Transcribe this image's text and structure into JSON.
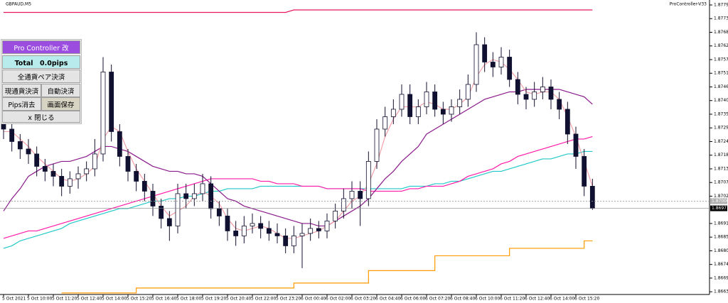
{
  "chart_data": {
    "type": "candlestick",
    "title": "GBPAUD,M5",
    "indicator": "ProController-V33",
    "categories": [
      "5 Oct 2021",
      null,
      null,
      "5 Oct 10:00",
      null,
      null,
      "5 Oct 11:20",
      null,
      null,
      "5 Oct 12:40",
      null,
      null,
      "5 Oct 14:00",
      null,
      null,
      "5 Oct 15:20",
      null,
      null,
      "5 Oct 16:40",
      null,
      null,
      "5 Oct 18:00",
      null,
      null,
      "5 Oct 19:20",
      null,
      null,
      "5 Oct 20:40",
      null,
      null,
      "5 Oct 22:00",
      null,
      null,
      "5 Oct 23:20",
      null,
      null,
      "6 Oct 00:40",
      null,
      null,
      "6 Oct 02:00",
      null,
      null,
      "6 Oct 03:20",
      null,
      null,
      "6 Oct 04:40",
      null,
      null,
      "6 Oct 06:00",
      null,
      null,
      "6 Oct 07:20",
      null,
      null,
      "6 Oct 08:40",
      null,
      null,
      "6 Oct 10:00",
      null,
      null,
      "6 Oct 11:20",
      null,
      null,
      "6 Oct 12:40",
      null,
      null,
      "6 Oct 14:00",
      null,
      null,
      "6 Oct 15:20",
      null,
      null
    ],
    "open": [
      1.8731,
      1.8729,
      1.8724,
      1.8721,
      1.8719,
      1.8714,
      1.8712,
      1.871,
      1.8706,
      1.8709,
      1.8711,
      1.8713,
      1.8719,
      1.8752,
      1.8728,
      1.8718,
      1.8712,
      1.8708,
      1.8704,
      1.8698,
      1.8693,
      1.869,
      1.8703,
      1.8701,
      1.8703,
      1.8707,
      1.8697,
      1.8694,
      1.8688,
      1.8686,
      1.869,
      1.8691,
      1.8689,
      1.8687,
      1.8686,
      1.8682,
      1.8686,
      1.8687,
      1.8689,
      1.8688,
      1.8692,
      1.8696,
      1.8701,
      1.8704,
      1.8701,
      1.8716,
      1.8729,
      1.8734,
      1.8737,
      1.8743,
      1.8734,
      1.8738,
      1.8744,
      1.8737,
      1.8735,
      1.8738,
      1.8741,
      1.8747,
      1.8763,
      1.8756,
      1.8754,
      1.8758,
      1.8749,
      1.8743,
      1.8741,
      1.8744,
      1.8746,
      1.8741,
      1.8737,
      1.8727,
      1.8718,
      1.8706
    ],
    "high": [
      1.8735,
      1.8733,
      1.8727,
      1.8725,
      1.8722,
      1.8717,
      1.8715,
      1.8713,
      1.8712,
      1.8714,
      1.8716,
      1.8725,
      1.8758,
      1.8755,
      1.8731,
      1.8721,
      1.8715,
      1.8711,
      1.8707,
      1.8701,
      1.8696,
      1.8707,
      1.8707,
      1.8707,
      1.8711,
      1.871,
      1.87,
      1.8697,
      1.8692,
      1.8694,
      1.8695,
      1.8694,
      1.8692,
      1.8691,
      1.8689,
      1.869,
      1.8691,
      1.8693,
      1.8692,
      1.8695,
      1.8699,
      1.8705,
      1.8708,
      1.8708,
      1.872,
      1.8733,
      1.8738,
      1.8741,
      1.8747,
      1.8747,
      1.8741,
      1.8748,
      1.8747,
      1.874,
      1.8741,
      1.8745,
      1.8751,
      1.8768,
      1.8766,
      1.876,
      1.8762,
      1.8761,
      1.8752,
      1.8746,
      1.8748,
      1.875,
      1.8749,
      1.8744,
      1.874,
      1.873,
      1.8721,
      1.8709
    ],
    "low": [
      1.8725,
      1.872,
      1.8717,
      1.8715,
      1.871,
      1.8708,
      1.8706,
      1.8702,
      1.8703,
      1.8705,
      1.8708,
      1.871,
      1.8716,
      1.8724,
      1.8714,
      1.8708,
      1.8704,
      1.87,
      1.8694,
      1.8689,
      1.8684,
      1.8687,
      1.8697,
      1.8698,
      1.87,
      1.8693,
      1.869,
      1.8684,
      1.8682,
      1.8683,
      1.8687,
      1.8685,
      1.8684,
      1.8683,
      1.8679,
      1.8679,
      1.8673,
      1.8684,
      1.8685,
      1.8685,
      1.8689,
      1.8693,
      1.8697,
      1.869,
      1.8698,
      1.8713,
      1.8726,
      1.8731,
      1.8734,
      1.8731,
      1.8731,
      1.8735,
      1.8734,
      1.8731,
      1.8732,
      1.8735,
      1.8738,
      1.8744,
      1.8752,
      1.875,
      1.8751,
      1.8746,
      1.8739,
      1.8737,
      1.8738,
      1.8741,
      1.8737,
      1.8733,
      1.8723,
      1.8713,
      1.8702,
      1.86965
    ],
    "close": [
      1.8729,
      1.8724,
      1.8721,
      1.8719,
      1.8714,
      1.8712,
      1.871,
      1.8706,
      1.8709,
      1.8711,
      1.8713,
      1.8719,
      1.8752,
      1.8728,
      1.8718,
      1.8712,
      1.8708,
      1.8704,
      1.8698,
      1.8693,
      1.869,
      1.8703,
      1.8701,
      1.8703,
      1.8707,
      1.8697,
      1.8694,
      1.8688,
      1.8686,
      1.869,
      1.8691,
      1.8689,
      1.8687,
      1.8686,
      1.8682,
      1.8686,
      1.8687,
      1.8689,
      1.8688,
      1.8692,
      1.8696,
      1.8701,
      1.8704,
      1.8701,
      1.8716,
      1.8729,
      1.8734,
      1.8737,
      1.8743,
      1.8734,
      1.8738,
      1.8744,
      1.8737,
      1.8735,
      1.8738,
      1.8741,
      1.8747,
      1.8763,
      1.8756,
      1.8754,
      1.8758,
      1.8749,
      1.8743,
      1.8741,
      1.8744,
      1.8746,
      1.8741,
      1.8737,
      1.8727,
      1.8718,
      1.8706,
      1.86971
    ],
    "candle_color": "#101030",
    "series": [
      {
        "color": "#e8175d",
        "values": [
          1.8776,
          1.8776,
          1.8776,
          1.8776,
          1.8776,
          1.8776,
          1.8776,
          1.8776,
          1.8776,
          1.8776,
          1.8776,
          1.8776,
          1.8776,
          1.8776,
          1.8776,
          1.8776,
          1.8776,
          1.8776,
          1.8776,
          1.8776,
          1.8776,
          1.8776,
          1.8776,
          1.8776,
          1.8776,
          1.8776,
          1.8776,
          1.8776,
          1.8776,
          1.8776,
          1.8776,
          1.8776,
          1.8776,
          1.8776,
          1.8776,
          1.8777,
          1.8777,
          1.8777,
          1.8777,
          1.8777,
          1.8777,
          1.8777,
          1.8777,
          1.8777,
          1.8777,
          1.8777,
          1.8777,
          1.8777,
          1.8777,
          1.8777,
          1.8777,
          1.8777,
          1.8777,
          1.8777,
          1.8777,
          1.8777,
          1.8777,
          1.8777,
          1.8777,
          1.8777,
          1.8777,
          1.8777,
          1.8777,
          1.8777,
          1.8777,
          1.8777,
          1.8777,
          1.8777,
          1.8777,
          1.8777,
          1.8777,
          1.8777
        ]
      },
      {
        "color": "#ff9900",
        "step": true,
        "values": [
          null,
          null,
          null,
          null,
          null,
          null,
          null,
          1.8663,
          1.8663,
          1.8663,
          1.8663,
          1.8663,
          1.8663,
          1.8663,
          1.8663,
          1.8663,
          1.8665,
          1.8665,
          1.8665,
          1.8665,
          1.8665,
          1.8665,
          1.8665,
          1.8665,
          1.8665,
          1.8665,
          1.8665,
          1.8665,
          1.8665,
          1.8665,
          1.8665,
          1.8665,
          1.8665,
          1.8665,
          1.8665,
          1.8667,
          1.8667,
          1.8667,
          1.8667,
          1.8667,
          1.8667,
          1.8667,
          1.8667,
          1.8667,
          1.8672,
          1.8672,
          1.8672,
          1.8672,
          1.8672,
          1.8672,
          1.8672,
          1.8672,
          1.8678,
          1.8678,
          1.8678,
          1.8678,
          1.8678,
          1.8678,
          1.8678,
          1.8678,
          1.8678,
          1.8681,
          1.8681,
          1.8681,
          1.8681,
          1.8681,
          1.8681,
          1.8681,
          1.8681,
          1.8681,
          1.8684,
          1.8684
        ]
      },
      {
        "color": "#20c8c8",
        "values": [
          1.8681,
          1.8682,
          1.8684,
          1.8685,
          1.8686,
          1.8687,
          1.8688,
          1.8689,
          1.8691,
          1.8692,
          1.8693,
          1.8694,
          1.8695,
          1.8696,
          1.8697,
          1.8697,
          1.8698,
          1.8699,
          1.87,
          1.87,
          1.8701,
          1.8701,
          1.8702,
          1.8702,
          1.8703,
          1.8704,
          1.8704,
          1.8705,
          1.8705,
          1.8705,
          1.8705,
          1.8706,
          1.8706,
          1.8706,
          1.8706,
          1.8706,
          1.8706,
          1.8706,
          1.8706,
          1.8705,
          1.8705,
          1.8705,
          1.8705,
          1.8705,
          1.8705,
          1.8705,
          1.8705,
          1.8705,
          1.8705,
          1.8706,
          1.8706,
          1.8706,
          1.8707,
          1.8707,
          1.8708,
          1.8708,
          1.8709,
          1.871,
          1.8711,
          1.8712,
          1.8712,
          1.8713,
          1.8714,
          1.8715,
          1.8716,
          1.8717,
          1.8717,
          1.8718,
          1.8719,
          1.8719,
          1.872,
          1.872
        ]
      },
      {
        "color": "#ff1aa8",
        "values": [
          1.8685,
          1.8686,
          1.8687,
          1.8688,
          1.8688,
          1.8689,
          1.869,
          1.8691,
          1.8692,
          1.8693,
          1.8694,
          1.8695,
          1.8696,
          1.8697,
          1.8698,
          1.8699,
          1.87,
          1.8701,
          1.8702,
          1.8703,
          1.8704,
          1.8705,
          1.8706,
          1.8707,
          1.8708,
          1.8709,
          1.8709,
          1.8709,
          1.8709,
          1.8709,
          1.8709,
          1.8708,
          1.8708,
          1.8707,
          1.8707,
          1.8707,
          1.8706,
          1.8706,
          1.8706,
          1.8705,
          1.8705,
          1.8705,
          1.8705,
          1.8705,
          1.8704,
          1.8704,
          1.8704,
          1.8704,
          1.8704,
          1.8705,
          1.8705,
          1.8706,
          1.8706,
          1.8706,
          1.8707,
          1.8708,
          1.871,
          1.8711,
          1.8712,
          1.8713,
          1.8715,
          1.8716,
          1.8718,
          1.8719,
          1.872,
          1.8721,
          1.8722,
          1.8723,
          1.8724,
          1.8725,
          1.8725,
          1.8726
        ]
      },
      {
        "color": "#8b1a8b",
        "values": [
          1.8696,
          1.8701,
          1.8705,
          1.871,
          1.8712,
          1.8714,
          1.8715,
          1.8716,
          1.8716,
          1.8717,
          1.8718,
          1.872,
          1.8722,
          1.8722,
          1.8721,
          1.872,
          1.8718,
          1.8716,
          1.8714,
          1.8713,
          1.8712,
          1.8712,
          1.8711,
          1.8711,
          1.871,
          1.8707,
          1.8704,
          1.8701,
          1.87,
          1.8698,
          1.8697,
          1.8696,
          1.8695,
          1.8694,
          1.8693,
          1.8692,
          1.8691,
          1.8691,
          1.869,
          1.869,
          1.8692,
          1.8694,
          1.8696,
          1.8698,
          1.8701,
          1.8705,
          1.8709,
          1.8712,
          1.8716,
          1.8719,
          1.8722,
          1.8727,
          1.8729,
          1.8731,
          1.8733,
          1.8735,
          1.8737,
          1.8739,
          1.8741,
          1.8742,
          1.8743,
          1.8744,
          1.8744,
          1.8745,
          1.8745,
          1.8745,
          1.8745,
          1.8745,
          1.8744,
          1.8743,
          1.8742,
          1.8739
        ]
      },
      {
        "color": "#f4a0a8",
        "values": [
          1.8728,
          1.8728,
          1.8725,
          1.8722,
          1.8718,
          1.8715,
          1.8712,
          1.8709,
          1.8708,
          1.8709,
          1.8711,
          1.8714,
          1.8725,
          1.873,
          1.8728,
          1.872,
          1.8713,
          1.8708,
          1.8703,
          1.8698,
          1.8694,
          1.8696,
          1.8698,
          1.8702,
          1.8704,
          1.8702,
          1.8699,
          1.8693,
          1.8689,
          1.8688,
          1.8689,
          1.869,
          1.8689,
          1.8687,
          1.8685,
          1.8685,
          1.8686,
          1.8687,
          1.8688,
          1.869,
          1.8692,
          1.8696,
          1.87,
          1.8702,
          1.8707,
          1.8715,
          1.8726,
          1.8733,
          1.8738,
          1.8738,
          1.8738,
          1.874,
          1.8739,
          1.8737,
          1.8737,
          1.8739,
          1.8742,
          1.875,
          1.8755,
          1.8757,
          1.8756,
          1.8753,
          1.8749,
          1.8744,
          1.8743,
          1.8744,
          1.8744,
          1.8741,
          1.8734,
          1.8726,
          1.8716,
          1.8706
        ]
      }
    ],
    "price_lines": [
      {
        "value": 1.87,
        "label": "1.87000",
        "style": "dotted"
      },
      {
        "value": 1.86971,
        "label": "1.86971",
        "style": "solid"
      }
    ],
    "ylim": [
      1.86624,
      1.8781
    ],
    "yticks": [
      {
        "value": 1.8779,
        "label": "1.87790"
      },
      {
        "value": 1.87735,
        "label": "1.87735"
      },
      {
        "value": 1.8768,
        "label": "1.87680"
      },
      {
        "value": 1.87625,
        "label": "1.87625"
      },
      {
        "value": 1.8757,
        "label": "1.87570"
      },
      {
        "value": 1.87515,
        "label": "1.87515"
      },
      {
        "value": 1.8746,
        "label": "1.87460"
      },
      {
        "value": 1.87405,
        "label": "1.87405"
      },
      {
        "value": 1.8735,
        "label": "1.87350"
      },
      {
        "value": 1.87295,
        "label": "1.87295"
      },
      {
        "value": 1.8724,
        "label": "1.87240"
      },
      {
        "value": 1.87185,
        "label": "1.87185"
      },
      {
        "value": 1.8713,
        "label": "1.87130"
      },
      {
        "value": 1.87075,
        "label": "1.87075"
      },
      {
        "value": 1.8702,
        "label": "1.87020"
      },
      {
        "value": 1.8691,
        "label": "1.86910"
      },
      {
        "value": 1.86855,
        "label": "1.86855"
      },
      {
        "value": 1.868,
        "label": "1.86800"
      },
      {
        "value": 1.86745,
        "label": "1.86745"
      },
      {
        "value": 1.8669,
        "label": "1.86690"
      },
      {
        "value": 1.86635,
        "label": "1.86635"
      }
    ],
    "grid": false
  },
  "panel": {
    "title": "Pro Controller 改",
    "total": "Total　0.0pips",
    "buttons": [
      "全通貨ペア決済",
      "現通貨決済",
      "自動決済",
      "Pips消去",
      "画面保存",
      "x 閉じる"
    ]
  }
}
